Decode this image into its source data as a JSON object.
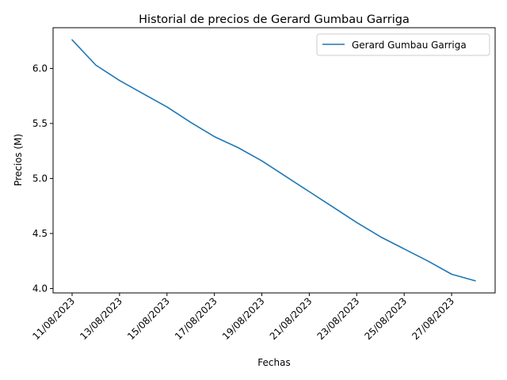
{
  "chart_data": {
    "type": "line",
    "title": "Historial de precios de Gerard Gumbau Garriga",
    "xlabel": "Fechas",
    "ylabel": "Precios (M)",
    "x": [
      "11/08/2023",
      "12/08/2023",
      "13/08/2023",
      "14/08/2023",
      "15/08/2023",
      "16/08/2023",
      "17/08/2023",
      "18/08/2023",
      "19/08/2023",
      "20/08/2023",
      "21/08/2023",
      "22/08/2023",
      "23/08/2023",
      "24/08/2023",
      "25/08/2023",
      "26/08/2023",
      "27/08/2023",
      "28/08/2023"
    ],
    "x_ticks": [
      "11/08/2023",
      "13/08/2023",
      "15/08/2023",
      "17/08/2023",
      "19/08/2023",
      "21/08/2023",
      "23/08/2023",
      "25/08/2023",
      "27/08/2023"
    ],
    "y_ticks": [
      "4.0",
      "4.5",
      "5.0",
      "5.5",
      "6.0"
    ],
    "ylim": [
      3.96,
      6.37
    ],
    "series": [
      {
        "name": "Gerard Gumbau Garriga",
        "color": "#1f77b4",
        "values": [
          6.26,
          6.03,
          5.89,
          5.77,
          5.65,
          5.51,
          5.38,
          5.28,
          5.16,
          5.02,
          4.88,
          4.74,
          4.6,
          4.47,
          4.36,
          4.25,
          4.13,
          4.07
        ]
      }
    ],
    "legend_position": "top-right",
    "grid": false
  }
}
